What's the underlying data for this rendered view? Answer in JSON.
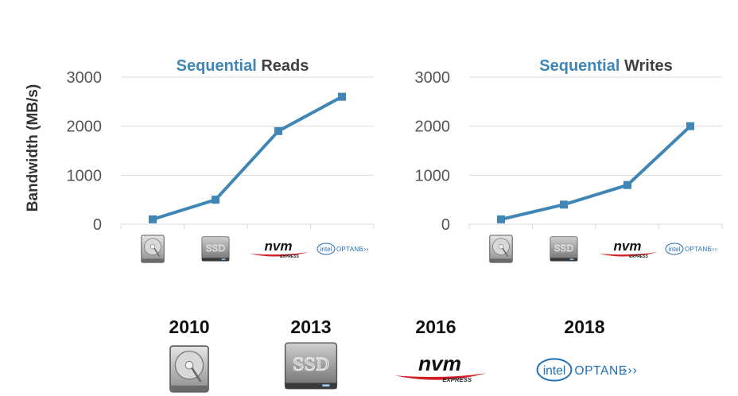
{
  "colors": {
    "accent": "#3f86b4",
    "title_rest": "#404040",
    "axis_text": "#555555",
    "grid": "#d9d9d9"
  },
  "icons": [
    "hdd-icon",
    "ssd-icon",
    "nvm-express-logo",
    "intel-optane-logo"
  ],
  "logos": {
    "nvm": "nvm",
    "nvm_sub": "EXPRESS",
    "intel": "intel",
    "optane": "OPTANE"
  },
  "years": [
    "2010",
    "2013",
    "2016",
    "2018"
  ],
  "chart_data": [
    {
      "type": "line",
      "title_parts": [
        "Sequential",
        "Reads"
      ],
      "ylabel": "Bandwidth (MB/s)",
      "ylim": [
        0,
        3000
      ],
      "yticks": [
        "0",
        "1000",
        "2000",
        "3000"
      ],
      "grid": true,
      "categories": [
        "hdd-icon",
        "ssd-icon",
        "nvm-express-logo",
        "intel-optane-logo"
      ],
      "series": [
        {
          "values": [
            100,
            500,
            1900,
            2600
          ]
        }
      ]
    },
    {
      "type": "line",
      "title_parts": [
        "Sequential",
        "Writes"
      ],
      "ylabel": "",
      "ylim": [
        0,
        3000
      ],
      "yticks": [
        "0",
        "1000",
        "2000",
        "3000"
      ],
      "grid": true,
      "categories": [
        "hdd-icon",
        "ssd-icon",
        "nvm-express-logo",
        "intel-optane-logo"
      ],
      "series": [
        {
          "values": [
            100,
            400,
            800,
            2000
          ]
        }
      ]
    }
  ]
}
